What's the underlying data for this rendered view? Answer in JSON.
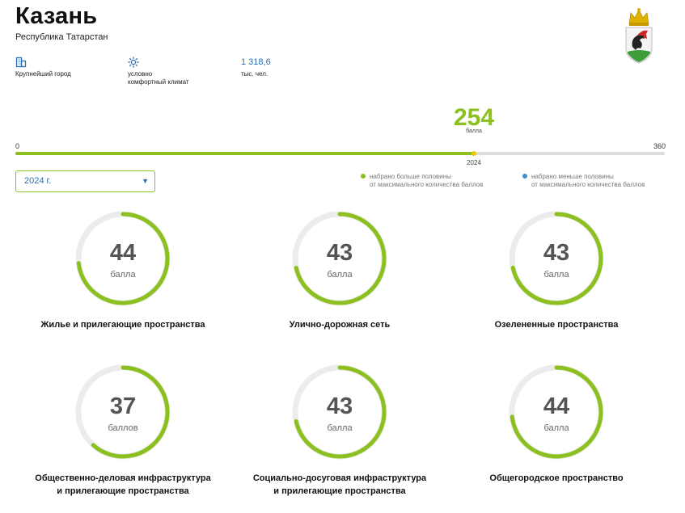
{
  "header": {
    "city": "Казань",
    "region": "Республика Татарстан"
  },
  "facts": [
    {
      "icon": "building-icon",
      "value": "",
      "label_lines": [
        "Крупнейший город"
      ]
    },
    {
      "icon": "sun-icon",
      "value": "",
      "label_lines": [
        "условно",
        "комфортный климат"
      ]
    },
    {
      "icon": "",
      "value": "1 318,6",
      "label_lines": [
        "тыс. чел."
      ]
    }
  ],
  "total": {
    "score": "254",
    "unit": "балла",
    "min": "0",
    "max": "360",
    "year_tick": "2024",
    "score_value": 254,
    "max_value": 360
  },
  "year_select": {
    "selected": "2024 г."
  },
  "legend": [
    {
      "color": "#8cc01f",
      "lines": [
        "набрано больше половины",
        "от максимального количества баллов"
      ]
    },
    {
      "color": "#3a8fd0",
      "lines": [
        "набрано меньше половины",
        "от максимального количества баллов"
      ]
    }
  ],
  "indicators": [
    {
      "score": "44",
      "value": 44,
      "max": 60,
      "unit": "балла",
      "name_lines": [
        "Жилье и прилегающие пространства"
      ]
    },
    {
      "score": "43",
      "value": 43,
      "max": 60,
      "unit": "балла",
      "name_lines": [
        "Улично-дорожная сеть"
      ]
    },
    {
      "score": "43",
      "value": 43,
      "max": 60,
      "unit": "балла",
      "name_lines": [
        "Озелененные пространства"
      ]
    },
    {
      "score": "37",
      "value": 37,
      "max": 60,
      "unit": "баллов",
      "name_lines": [
        "Общественно-деловая инфраструктура",
        "и прилегающие пространства"
      ]
    },
    {
      "score": "43",
      "value": 43,
      "max": 60,
      "unit": "балла",
      "name_lines": [
        "Социально-досуговая инфраструктура",
        "и прилегающие пространства"
      ]
    },
    {
      "score": "44",
      "value": 44,
      "max": 60,
      "unit": "балла",
      "name_lines": [
        "Общегородское пространство"
      ]
    }
  ],
  "colors": {
    "accent": "#8cc01f",
    "link": "#2a6fb0",
    "track": "#dcdcdc",
    "marker": "#f2c400"
  }
}
